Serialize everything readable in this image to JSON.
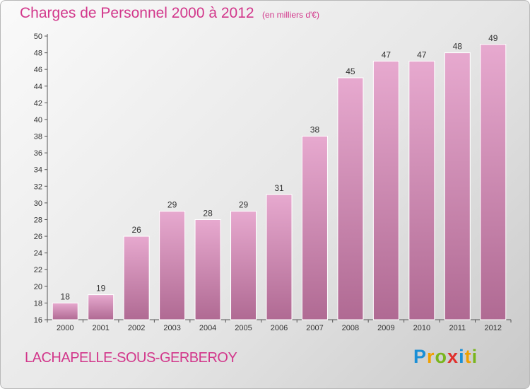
{
  "title": "Charges de Personnel 2000 à 2012",
  "subtitle": "(en milliers d'€)",
  "commune": "LACHAPELLE-SOUS-GERBEROY",
  "brand": {
    "text": "Proxiti",
    "letters": [
      {
        "ch": "P",
        "color": "#1a8fd6"
      },
      {
        "ch": "r",
        "color": "#f0a000"
      },
      {
        "ch": "o",
        "color": "#79b51c"
      },
      {
        "ch": "x",
        "color": "#e0302c"
      },
      {
        "ch": "i",
        "color": "#1a8fd6"
      },
      {
        "ch": "t",
        "color": "#f0a000"
      },
      {
        "ch": "i",
        "color": "#79b51c"
      }
    ]
  },
  "colors": {
    "accent": "#d2378b",
    "bar_top": "#e7a9cf",
    "bar_bottom": "#b06a93"
  },
  "chart_data": {
    "type": "bar",
    "categories": [
      "2000",
      "2001",
      "2002",
      "2003",
      "2004",
      "2005",
      "2006",
      "2007",
      "2008",
      "2009",
      "2010",
      "2011",
      "2012"
    ],
    "values": [
      18,
      19,
      26,
      29,
      28,
      29,
      31,
      38,
      45,
      47,
      47,
      48,
      49
    ],
    "ylim": [
      16,
      50
    ],
    "yticks": [
      16,
      18,
      20,
      22,
      24,
      26,
      28,
      30,
      32,
      34,
      36,
      38,
      40,
      42,
      44,
      46,
      48,
      50
    ],
    "grid": false,
    "legend": "none"
  }
}
